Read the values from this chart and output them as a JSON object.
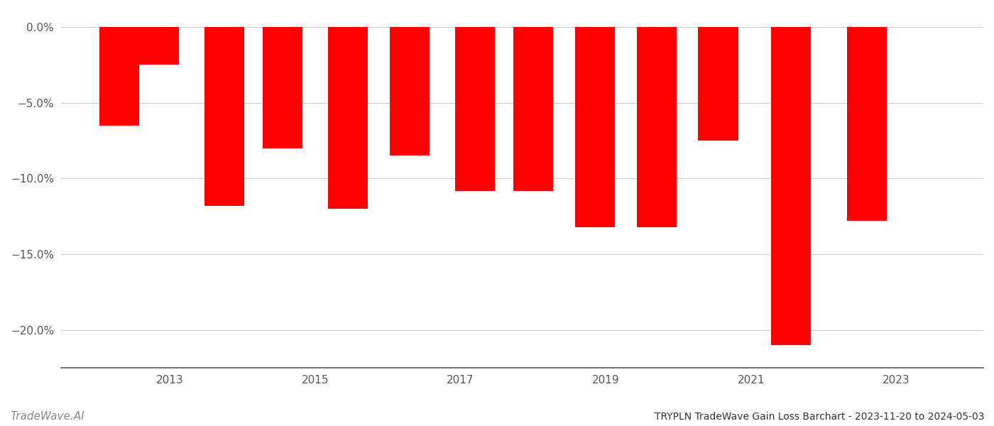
{
  "years": [
    2012.3,
    2012.85,
    2013.75,
    2014.55,
    2015.45,
    2016.3,
    2017.2,
    2018.0,
    2018.85,
    2019.7,
    2020.55,
    2021.55,
    2022.6
  ],
  "values": [
    -6.5,
    -2.5,
    -11.8,
    -8.0,
    -12.0,
    -8.5,
    -10.8,
    -10.8,
    -13.2,
    -13.2,
    -7.5,
    -21.0,
    -12.8
  ],
  "bar_color": "#ff0000",
  "bar_width": 0.55,
  "ylim": [
    -22.5,
    0.8
  ],
  "yticks": [
    0.0,
    -5.0,
    -10.0,
    -15.0,
    -20.0
  ],
  "xlim": [
    2011.5,
    2024.2
  ],
  "xticks": [
    2013,
    2015,
    2017,
    2019,
    2021,
    2023
  ],
  "title": "TRYPLN TradeWave Gain Loss Barchart - 2023-11-20 to 2024-05-03",
  "watermark": "TradeWave.AI",
  "background_color": "#ffffff",
  "grid_color": "#cccccc",
  "axis_color": "#555555",
  "tick_label_color": "#555555",
  "title_color": "#333333",
  "watermark_color": "#888888"
}
